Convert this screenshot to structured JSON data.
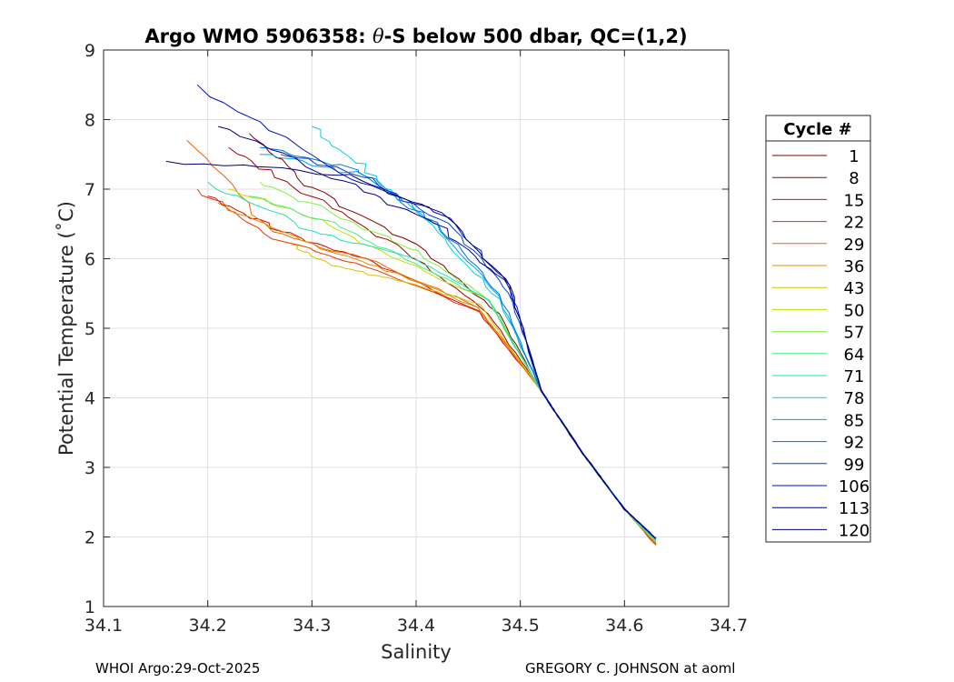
{
  "chart_data": {
    "type": "line",
    "title_prefix": "Argo WMO 5906358: ",
    "title_theta": "θ",
    "title_suffix": "-S below 500 dbar,  QC=(1,2)",
    "xlabel": "Salinity",
    "ylabel": "Potential Temperature (˚C)",
    "xlim": [
      34.1,
      34.7
    ],
    "ylim": [
      1,
      9
    ],
    "xticks": [
      34.1,
      34.2,
      34.3,
      34.4,
      34.5,
      34.6,
      34.7
    ],
    "xtick_labels": [
      "34.1",
      "34.2",
      "34.3",
      "34.4",
      "34.5",
      "34.6",
      "34.7"
    ],
    "yticks": [
      1,
      2,
      3,
      4,
      5,
      6,
      7,
      8,
      9
    ],
    "ytick_labels": [
      "1",
      "2",
      "3",
      "4",
      "5",
      "6",
      "7",
      "8",
      "9"
    ],
    "grid": true,
    "legend_title": "Cycle #",
    "legend_position": "outside-right",
    "legend_entries": [
      {
        "label": "1",
        "color": "#800000"
      },
      {
        "label": "8",
        "color": "#a00000"
      },
      {
        "label": "15",
        "color": "#d01000"
      },
      {
        "label": "22",
        "color": "#f03000"
      },
      {
        "label": "29",
        "color": "#f06000"
      },
      {
        "label": "36",
        "color": "#e09000"
      },
      {
        "label": "43",
        "color": "#d8c000"
      },
      {
        "label": "50",
        "color": "#c0e000"
      },
      {
        "label": "57",
        "color": "#80f040"
      },
      {
        "label": "64",
        "color": "#40f080"
      },
      {
        "label": "71",
        "color": "#20e0b0"
      },
      {
        "label": "78",
        "color": "#00d0e0"
      },
      {
        "label": "85",
        "color": "#00a0f0"
      },
      {
        "label": "92",
        "color": "#0070e0"
      },
      {
        "label": "99",
        "color": "#0040d0"
      },
      {
        "label": "106",
        "color": "#0010c0"
      },
      {
        "label": "113",
        "color": "#000090"
      },
      {
        "label": "120",
        "color": "#000070"
      }
    ],
    "series": [
      {
        "name": "1",
        "color": "#800000",
        "s": [
          34.63,
          34.6,
          34.56,
          34.52,
          34.48,
          34.4,
          34.3,
          34.24
        ],
        "t": [
          1.95,
          2.4,
          3.2,
          4.1,
          5.2,
          6.2,
          7.0,
          7.8
        ]
      },
      {
        "name": "8",
        "color": "#a00000",
        "s": [
          34.63,
          34.6,
          34.56,
          34.52,
          34.47,
          34.39,
          34.3,
          34.22
        ],
        "t": [
          1.93,
          2.4,
          3.2,
          4.1,
          5.2,
          6.1,
          6.9,
          7.6
        ]
      },
      {
        "name": "15",
        "color": "#d01000",
        "s": [
          34.63,
          34.6,
          34.56,
          34.52,
          34.46,
          34.36,
          34.27,
          34.2
        ],
        "t": [
          1.9,
          2.4,
          3.2,
          4.1,
          5.25,
          5.95,
          6.4,
          6.9
        ]
      },
      {
        "name": "22",
        "color": "#f03000",
        "s": [
          34.63,
          34.6,
          34.56,
          34.52,
          34.46,
          34.35,
          34.26,
          34.19
        ],
        "t": [
          1.88,
          2.4,
          3.2,
          4.1,
          5.25,
          5.9,
          6.3,
          7.0
        ]
      },
      {
        "name": "29",
        "color": "#f06000",
        "s": [
          34.63,
          34.6,
          34.56,
          34.52,
          34.46,
          34.36,
          34.26,
          34.18
        ],
        "t": [
          1.9,
          2.4,
          3.2,
          4.1,
          5.3,
          5.95,
          6.4,
          7.7
        ]
      },
      {
        "name": "36",
        "color": "#e09000",
        "s": [
          34.63,
          34.6,
          34.56,
          34.52,
          34.46,
          34.38,
          34.3,
          34.21
        ],
        "t": [
          1.92,
          2.4,
          3.2,
          4.1,
          5.3,
          5.8,
          6.2,
          6.8
        ]
      },
      {
        "name": "43",
        "color": "#d8c000",
        "s": [
          34.63,
          34.6,
          34.56,
          34.52,
          34.46,
          34.38,
          34.32,
          34.28
        ],
        "t": [
          1.92,
          2.4,
          3.2,
          4.1,
          5.35,
          5.7,
          5.9,
          6.2
        ]
      },
      {
        "name": "50",
        "color": "#c0e000",
        "s": [
          34.63,
          34.6,
          34.56,
          34.52,
          34.47,
          34.38,
          34.3,
          34.22
        ],
        "t": [
          1.95,
          2.4,
          3.2,
          4.1,
          5.4,
          6.0,
          6.6,
          7.0
        ]
      },
      {
        "name": "57",
        "color": "#80f040",
        "s": [
          34.63,
          34.6,
          34.56,
          34.52,
          34.47,
          34.4,
          34.33,
          34.25
        ],
        "t": [
          1.95,
          2.4,
          3.2,
          4.1,
          5.4,
          6.1,
          6.6,
          7.1
        ]
      },
      {
        "name": "64",
        "color": "#40f080",
        "s": [
          34.63,
          34.6,
          34.56,
          34.52,
          34.47,
          34.39,
          34.32,
          34.24
        ],
        "t": [
          1.93,
          2.4,
          3.2,
          4.1,
          5.4,
          6.0,
          6.5,
          6.9
        ]
      },
      {
        "name": "71",
        "color": "#20e0b0",
        "s": [
          34.63,
          34.6,
          34.56,
          34.52,
          34.47,
          34.4,
          34.3,
          34.2
        ],
        "t": [
          1.95,
          2.4,
          3.2,
          4.1,
          5.4,
          6.0,
          6.4,
          7.1
        ]
      },
      {
        "name": "78",
        "color": "#00d0e0",
        "s": [
          34.63,
          34.6,
          34.56,
          34.52,
          34.48,
          34.42,
          34.36,
          34.3
        ],
        "t": [
          1.97,
          2.4,
          3.2,
          4.1,
          5.4,
          6.4,
          7.2,
          7.9
        ]
      },
      {
        "name": "85",
        "color": "#00a0f0",
        "s": [
          34.63,
          34.6,
          34.56,
          34.52,
          34.48,
          34.42,
          34.35,
          34.25
        ],
        "t": [
          1.97,
          2.4,
          3.2,
          4.1,
          5.45,
          6.5,
          7.2,
          7.5
        ]
      },
      {
        "name": "92",
        "color": "#0070e0",
        "s": [
          34.63,
          34.6,
          34.56,
          34.52,
          34.48,
          34.42,
          34.34,
          34.25
        ],
        "t": [
          1.97,
          2.4,
          3.2,
          4.1,
          5.5,
          6.5,
          7.3,
          7.6
        ]
      },
      {
        "name": "99",
        "color": "#0040d0",
        "s": [
          34.63,
          34.6,
          34.56,
          34.52,
          34.49,
          34.43,
          34.35,
          34.27
        ],
        "t": [
          1.98,
          2.4,
          3.2,
          4.1,
          5.5,
          6.5,
          7.2,
          7.5
        ]
      },
      {
        "name": "106",
        "color": "#0010c0",
        "s": [
          34.63,
          34.6,
          34.56,
          34.52,
          34.49,
          34.43,
          34.33,
          34.19
        ],
        "t": [
          1.98,
          2.4,
          3.2,
          4.1,
          5.6,
          6.6,
          7.2,
          8.5
        ]
      },
      {
        "name": "113",
        "color": "#000090",
        "s": [
          34.63,
          34.6,
          34.56,
          34.52,
          34.49,
          34.42,
          34.33,
          34.21
        ],
        "t": [
          1.98,
          2.4,
          3.2,
          4.1,
          5.6,
          6.5,
          7.1,
          7.9
        ]
      },
      {
        "name": "120",
        "color": "#000070",
        "s": [
          34.63,
          34.6,
          34.56,
          34.52,
          34.49,
          34.43,
          34.34,
          34.16
        ],
        "t": [
          1.98,
          2.4,
          3.2,
          4.1,
          5.6,
          6.6,
          7.2,
          7.4
        ]
      }
    ]
  },
  "footer": {
    "left": "WHOI Argo:29-Oct-2025",
    "right": "GREGORY C. JOHNSON at aoml"
  }
}
